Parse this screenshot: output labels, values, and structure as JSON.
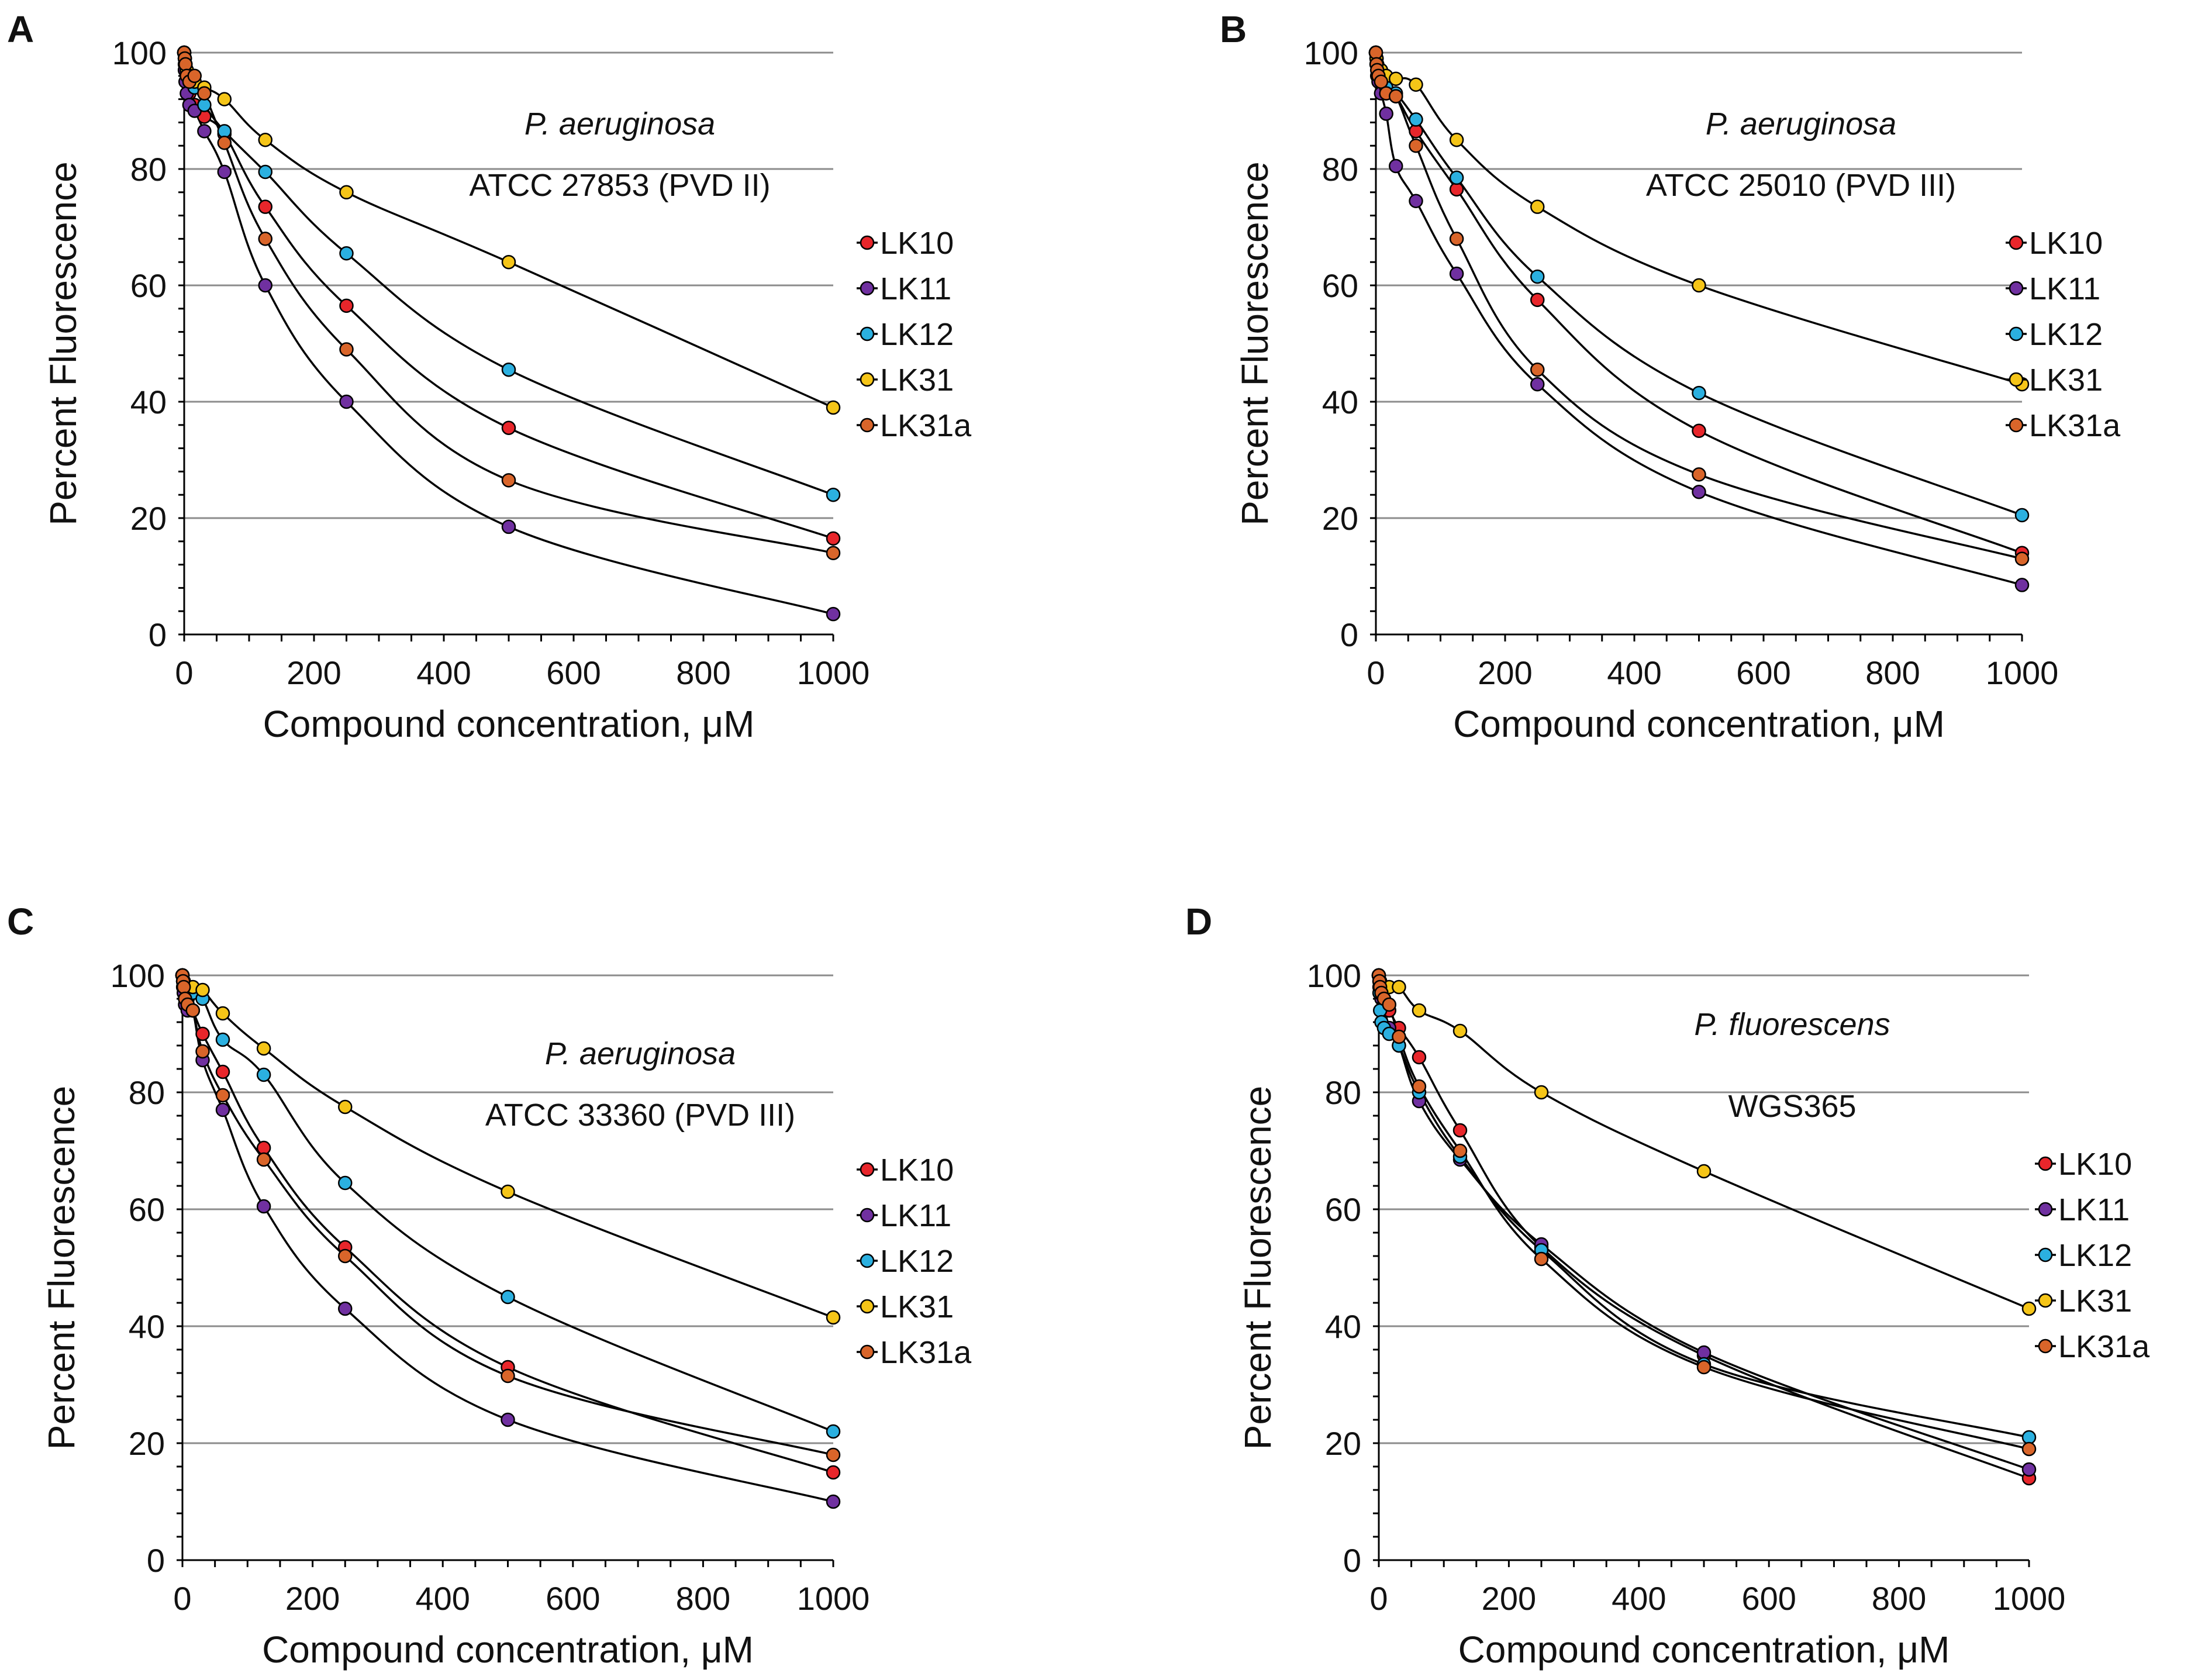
{
  "figure": {
    "colors": {
      "LK10": "#e8262b",
      "LK11": "#7030a0",
      "LK12": "#2bb0e0",
      "LK31": "#f5c518",
      "LK31a": "#d9652a"
    }
  },
  "chart_data": [
    {
      "type": "line",
      "panel": "A",
      "title": "",
      "annotation_species": "P. aeruginosa",
      "annotation_strain": "ATCC 27853 (PVD II)",
      "xlabel": "Compound concentration, μM",
      "ylabel": "Percent Fluorescence",
      "xlim": [
        0,
        1000
      ],
      "ylim": [
        0,
        100
      ],
      "xticks": [
        "0",
        "200",
        "400",
        "600",
        "800",
        "1000"
      ],
      "yticks": [
        "0",
        "20",
        "40",
        "60",
        "80",
        "100"
      ],
      "grid": "horizontal",
      "legend_position": "right",
      "x": [
        0,
        1,
        2,
        4,
        8,
        16,
        31,
        62,
        125,
        250,
        500,
        1000
      ],
      "series": [
        {
          "name": "LK10",
          "values": [
            100,
            98,
            97,
            95,
            93,
            91,
            89,
            86,
            73.5,
            56.5,
            35.5,
            16.5
          ]
        },
        {
          "name": "LK11",
          "values": [
            100,
            97,
            95,
            93,
            91,
            90,
            86.5,
            79.5,
            60,
            40,
            18.5,
            3.5
          ]
        },
        {
          "name": "LK12",
          "values": [
            100,
            99,
            98,
            97,
            96,
            94,
            91,
            86.5,
            79.5,
            65.5,
            45.5,
            24
          ]
        },
        {
          "name": "LK31",
          "values": [
            100,
            99,
            98,
            97,
            96,
            95,
            94,
            92,
            85,
            76,
            64,
            39
          ]
        },
        {
          "name": "LK31a",
          "values": [
            100,
            99,
            98,
            96,
            95,
            96,
            93,
            84.5,
            68,
            49,
            26.5,
            14
          ]
        }
      ]
    },
    {
      "type": "line",
      "panel": "B",
      "title": "",
      "annotation_species": "P. aeruginosa",
      "annotation_strain": "ATCC 25010 (PVD III)",
      "xlabel": "Compound concentration, μM",
      "ylabel": "Percent Fluorescence",
      "xlim": [
        0,
        1000
      ],
      "ylim": [
        0,
        100
      ],
      "xticks": [
        "0",
        "200",
        "400",
        "600",
        "800",
        "1000"
      ],
      "yticks": [
        "0",
        "20",
        "40",
        "60",
        "80",
        "100"
      ],
      "grid": "horizontal",
      "legend_position": "right",
      "x": [
        0,
        1,
        2,
        4,
        8,
        16,
        31,
        62,
        125,
        250,
        500,
        1000
      ],
      "series": [
        {
          "name": "LK10",
          "values": [
            100,
            99,
            98,
            97,
            95,
            93,
            92.5,
            86.5,
            76.5,
            57.5,
            35,
            14
          ]
        },
        {
          "name": "LK11",
          "values": [
            100,
            98,
            96,
            95,
            93,
            89.5,
            80.5,
            74.5,
            62,
            43,
            24.5,
            8.5
          ]
        },
        {
          "name": "LK12",
          "values": [
            100,
            99,
            98,
            97,
            96,
            94,
            93,
            88.5,
            78.5,
            61.5,
            41.5,
            20.5
          ]
        },
        {
          "name": "LK31",
          "values": [
            100,
            99,
            98,
            97,
            97,
            96,
            95.5,
            94.5,
            85,
            73.5,
            60,
            43
          ]
        },
        {
          "name": "LK31a",
          "values": [
            100,
            98,
            97,
            96,
            95,
            93,
            92.5,
            84,
            68,
            45.5,
            27.5,
            13
          ]
        }
      ]
    },
    {
      "type": "line",
      "panel": "C",
      "title": "",
      "annotation_species": "P. aeruginosa",
      "annotation_strain": "ATCC 33360 (PVD III)",
      "xlabel": "Compound concentration, μM",
      "ylabel": "Percent Fluorescence",
      "xlim": [
        0,
        1000
      ],
      "ylim": [
        0,
        100
      ],
      "xticks": [
        "0",
        "200",
        "400",
        "600",
        "800",
        "1000"
      ],
      "yticks": [
        "0",
        "20",
        "40",
        "60",
        "80",
        "100"
      ],
      "grid": "horizontal",
      "legend_position": "right",
      "x": [
        0,
        1,
        2,
        4,
        8,
        16,
        31,
        62,
        125,
        250,
        500,
        1000
      ],
      "series": [
        {
          "name": "LK10",
          "values": [
            100,
            99,
            98,
            97,
            96,
            94,
            90,
            83.5,
            70.5,
            53.5,
            33,
            15
          ]
        },
        {
          "name": "LK11",
          "values": [
            100,
            98,
            97,
            95,
            94,
            94,
            85.5,
            77,
            60.5,
            43,
            24,
            10
          ]
        },
        {
          "name": "LK12",
          "values": [
            100,
            99,
            99,
            98,
            98,
            97,
            96,
            89,
            83,
            64.5,
            45,
            22
          ]
        },
        {
          "name": "LK31",
          "values": [
            100,
            99,
            99,
            98,
            98,
            98,
            97.5,
            93.5,
            87.5,
            77.5,
            63,
            41.5
          ]
        },
        {
          "name": "LK31a",
          "values": [
            100,
            99,
            98,
            96,
            95,
            94,
            87,
            79.5,
            68.5,
            52,
            31.5,
            18
          ]
        }
      ]
    },
    {
      "type": "line",
      "panel": "D",
      "title": "",
      "annotation_species": "P. fluorescens",
      "annotation_strain": "WGS365",
      "xlabel": "Compound concentration, μM",
      "ylabel": "Percent Fluorescence",
      "xlim": [
        0,
        1000
      ],
      "ylim": [
        0,
        100
      ],
      "xticks": [
        "0",
        "200",
        "400",
        "600",
        "800",
        "1000"
      ],
      "yticks": [
        "0",
        "20",
        "40",
        "60",
        "80",
        "100"
      ],
      "grid": "horizontal",
      "legend_position": "right",
      "x": [
        0,
        1,
        2,
        4,
        8,
        16,
        31,
        62,
        125,
        250,
        500,
        1000
      ],
      "series": [
        {
          "name": "LK10",
          "values": [
            100,
            99,
            98,
            97,
            96,
            94,
            91,
            86,
            73.5,
            53.5,
            35,
            14
          ]
        },
        {
          "name": "LK11",
          "values": [
            100,
            98,
            97,
            96,
            95,
            91,
            88,
            78.5,
            68.5,
            54,
            35.5,
            15.5
          ]
        },
        {
          "name": "LK12",
          "values": [
            100,
            97,
            94,
            92,
            91,
            90,
            88,
            80,
            69,
            53,
            33.5,
            21
          ]
        },
        {
          "name": "LK31",
          "values": [
            100,
            99,
            99,
            98,
            98,
            98,
            98,
            94,
            90.5,
            80,
            66.5,
            43
          ]
        },
        {
          "name": "LK31a",
          "values": [
            100,
            99,
            98,
            97,
            96,
            95,
            89.5,
            81,
            70,
            51.5,
            33,
            19
          ]
        }
      ]
    }
  ]
}
